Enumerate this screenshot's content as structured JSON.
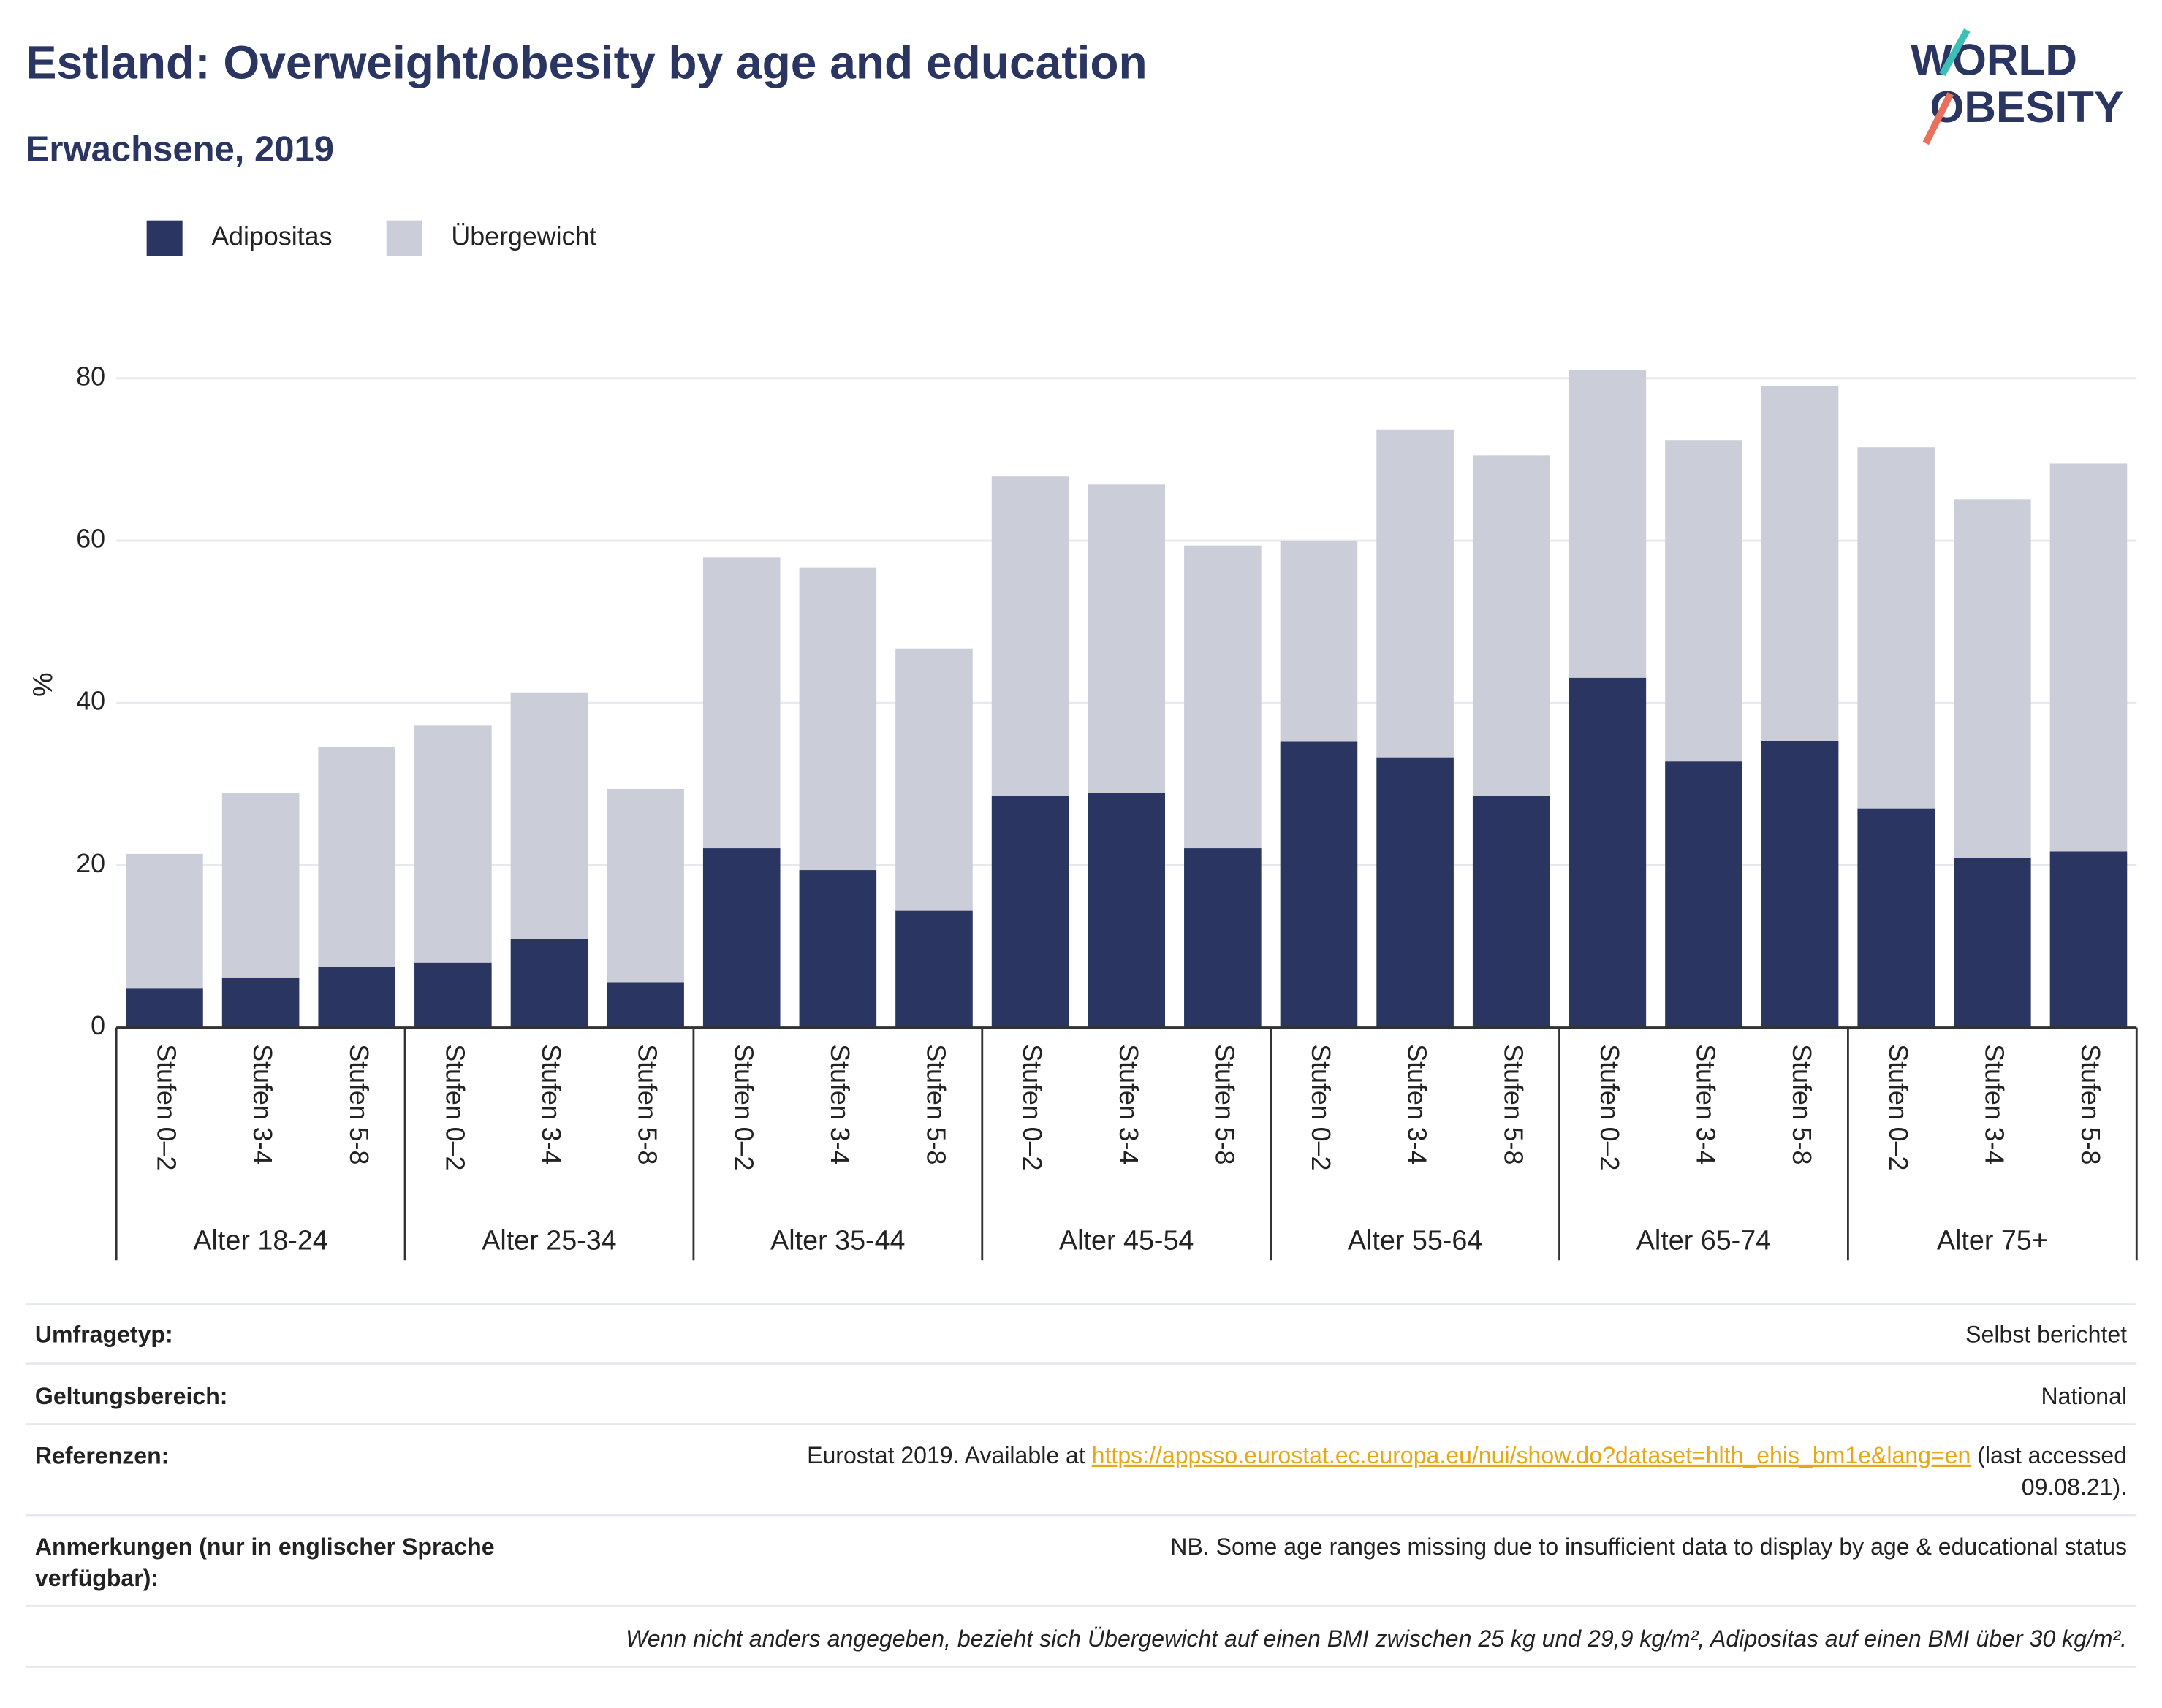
{
  "chart_data": {
    "type": "stacked_bar",
    "title": "Estland: Overweight/obesity by age and education",
    "subtitle": "Erwachsene, 2019",
    "logo": [
      "WORLD",
      "OBESITY"
    ],
    "ylabel": "%",
    "categories": [
      "Stufen 0–2",
      "Stufen 3-4",
      "Stufen 5-8",
      "Stufen 0–2",
      "Stufen 3-4",
      "Stufen 5-8",
      "Stufen 0–2",
      "Stufen 3-4",
      "Stufen 5-8",
      "Stufen 0–2",
      "Stufen 3-4",
      "Stufen 5-8",
      "Stufen 0–2",
      "Stufen 3-4",
      "Stufen 5-8",
      "Stufen 0–2",
      "Stufen 3-4",
      "Stufen 5-8",
      "Stufen 0–2",
      "Stufen 3-4",
      "Stufen 5-8"
    ],
    "groups": [
      "Alter 18-24",
      "Alter 25-34",
      "Alter 35-44",
      "Alter 45-54",
      "Alter 55-64",
      "Alter 65-74",
      "Alter 75+"
    ],
    "series": [
      {
        "name": "Adipositas",
        "color": "#2a3561",
        "values": [
          4.8,
          6.1,
          7.5,
          8.0,
          10.9,
          5.6,
          22.1,
          19.4,
          14.4,
          28.5,
          28.9,
          22.1,
          35.2,
          33.3,
          28.5,
          43.1,
          32.8,
          35.3,
          27.0,
          20.9,
          21.7
        ]
      },
      {
        "name": "Übergewicht",
        "color": "#cbcdd8",
        "values": [
          16.6,
          22.8,
          27.1,
          29.2,
          30.4,
          23.8,
          35.8,
          37.3,
          32.3,
          39.4,
          38.0,
          37.3,
          24.8,
          40.4,
          42.0,
          37.9,
          39.6,
          43.7,
          44.5,
          44.2,
          47.8
        ]
      }
    ],
    "ylim": [
      0,
      83.5
    ],
    "yticks": [
      0,
      20,
      40,
      60,
      80
    ],
    "grid": true,
    "legend": "top-left"
  },
  "footer": {
    "survey": {
      "label": "Umfragetyp:",
      "value": "Selbst berichtet"
    },
    "scope": {
      "label": "Geltungsbereich:",
      "value": "National"
    },
    "references": {
      "label": "Referenzen:",
      "text": "Eurostat 2019. Available at",
      "link": "https://appsso.eurostat.ec.europa.eu/nui/show.do?dataset=hlth_ehis_bm1e&lang=en",
      "after": [
        "(last accessed",
        "09.08.21)."
      ]
    },
    "notes": {
      "label": [
        "Anmerkungen (nur in englischer Sprache",
        "verfügbar):"
      ],
      "value": "NB. Some age ranges missing due to insufficient data to display by age & educational status"
    },
    "definition": "Wenn nicht anders angegeben, bezieht sich Übergewicht auf einen BMI zwischen 25 kg und 29,9 kg/m², Adipositas auf einen BMI über 30 kg/m²."
  }
}
